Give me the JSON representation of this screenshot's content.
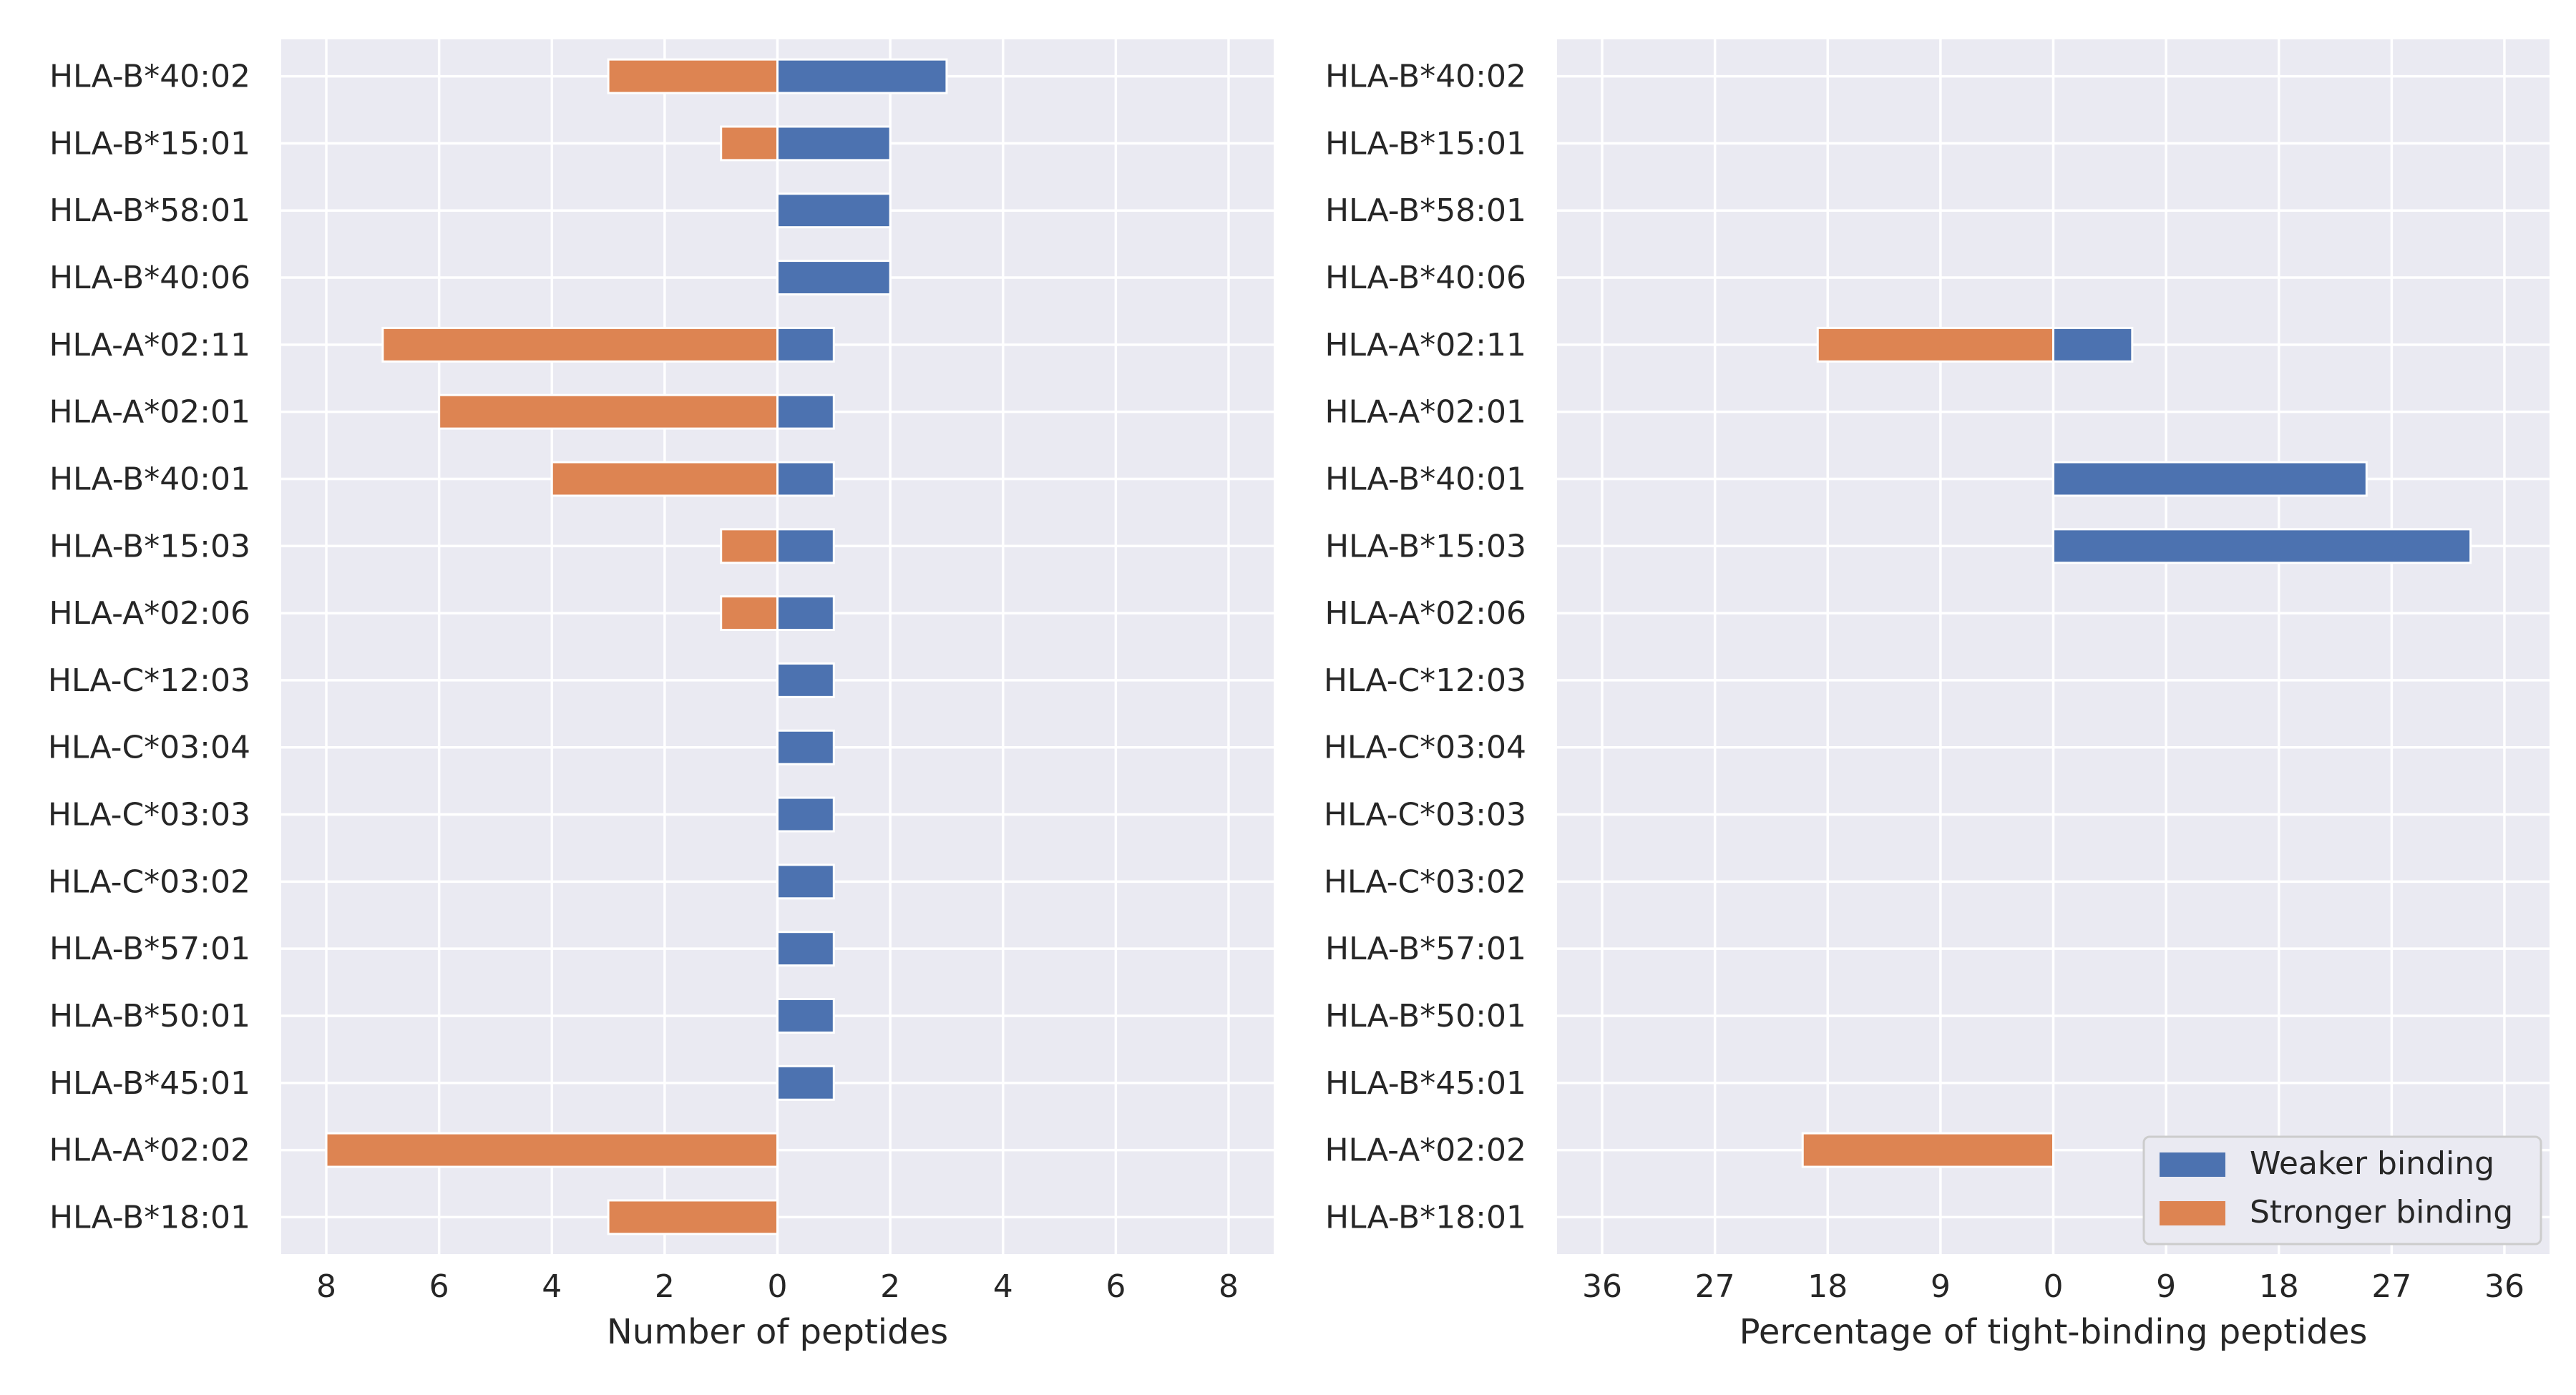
{
  "chart_data": [
    {
      "type": "bar",
      "orientation": "horizontal",
      "stacking": "diverging",
      "categories": [
        "HLA-B*40:02",
        "HLA-B*15:01",
        "HLA-B*58:01",
        "HLA-B*40:06",
        "HLA-A*02:11",
        "HLA-A*02:01",
        "HLA-B*40:01",
        "HLA-B*15:03",
        "HLA-A*02:06",
        "HLA-C*12:03",
        "HLA-C*03:04",
        "HLA-C*03:03",
        "HLA-C*03:02",
        "HLA-B*57:01",
        "HLA-B*50:01",
        "HLA-B*45:01",
        "HLA-A*02:02",
        "HLA-B*18:01"
      ],
      "series": [
        {
          "name": "Weaker binding",
          "color": "#4c72b0",
          "direction": "right",
          "values": [
            3,
            2,
            2,
            2,
            1,
            1,
            1,
            1,
            1,
            1,
            1,
            1,
            1,
            1,
            1,
            1,
            0,
            0
          ]
        },
        {
          "name": "Stronger binding",
          "color": "#dd8452",
          "direction": "left",
          "values": [
            3,
            1,
            0,
            0,
            7,
            6,
            4,
            1,
            1,
            0,
            0,
            0,
            0,
            0,
            0,
            0,
            8,
            3
          ]
        }
      ],
      "xlabel": "Number of peptides",
      "ylabel": "",
      "xlim": [
        -8.8,
        8.8
      ],
      "xticks": [
        -8,
        -6,
        -4,
        -2,
        0,
        2,
        4,
        6,
        8
      ],
      "xtick_labels": [
        "8",
        "6",
        "4",
        "2",
        "0",
        "2",
        "4",
        "6",
        "8"
      ],
      "grid": true,
      "legend": "none"
    },
    {
      "type": "bar",
      "orientation": "horizontal",
      "stacking": "diverging",
      "categories": [
        "HLA-B*40:02",
        "HLA-B*15:01",
        "HLA-B*58:01",
        "HLA-B*40:06",
        "HLA-A*02:11",
        "HLA-A*02:01",
        "HLA-B*40:01",
        "HLA-B*15:03",
        "HLA-A*02:06",
        "HLA-C*12:03",
        "HLA-C*03:04",
        "HLA-C*03:03",
        "HLA-C*03:02",
        "HLA-B*57:01",
        "HLA-B*50:01",
        "HLA-B*45:01",
        "HLA-A*02:02",
        "HLA-B*18:01"
      ],
      "series": [
        {
          "name": "Weaker binding",
          "color": "#4c72b0",
          "direction": "right",
          "values": [
            0,
            0,
            0,
            0,
            6.3,
            0,
            25,
            33.3,
            0,
            0,
            0,
            0,
            0,
            0,
            0,
            0,
            0,
            0
          ]
        },
        {
          "name": "Stronger binding",
          "color": "#dd8452",
          "direction": "left",
          "values": [
            0,
            0,
            0,
            0,
            18.8,
            0,
            0,
            0,
            0,
            0,
            0,
            0,
            0,
            0,
            0,
            0,
            20,
            0
          ]
        }
      ],
      "xlabel": "Percentage of tight-binding peptides",
      "ylabel": "",
      "xlim": [
        -39.6,
        39.6
      ],
      "xticks": [
        -36,
        -27,
        -18,
        -9,
        0,
        9,
        18,
        27,
        36
      ],
      "xtick_labels": [
        "36",
        "27",
        "18",
        "9",
        "0",
        "9",
        "18",
        "27",
        "36"
      ],
      "grid": true,
      "legend": "lower-right"
    }
  ]
}
